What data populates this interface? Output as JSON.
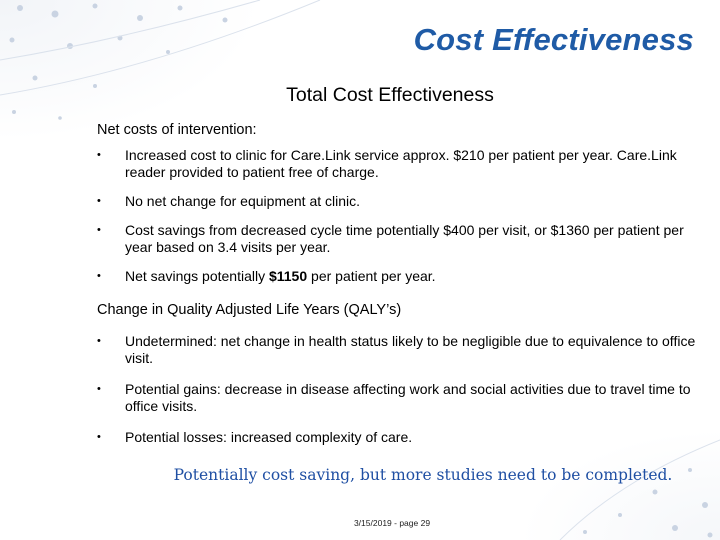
{
  "slide": {
    "title": "Cost Effectiveness",
    "subtitle": "Total Cost Effectiveness",
    "sections": [
      {
        "heading": "Net costs of intervention:",
        "bullets": [
          {
            "text": "Increased cost to clinic for Care.Link service approx. $210 per patient per year. Care.Link reader provided to patient free of charge."
          },
          {
            "text": "No net change for equipment at clinic."
          },
          {
            "text": "Cost savings from decreased cycle time potentially $400 per visit, or $1360 per patient per year based on 3.4 visits per year."
          },
          {
            "pre": "Net savings potentially ",
            "bold": "$1150",
            "post": " per patient per year."
          }
        ]
      },
      {
        "heading": "Change in Quality Adjusted Life Years (QALY’s)",
        "bullets": [
          {
            "text": "Undetermined: net change in health status likely to be negligible due to equivalence to office visit."
          },
          {
            "text": "Potential gains: decrease in disease affecting work and social activities due to travel time to office visits."
          },
          {
            "text": "Potential losses: increased complexity of care."
          }
        ]
      }
    ],
    "bullet_symbol": "•",
    "conclusion": "Potentially cost saving, but more studies need to be completed.",
    "footer": "3/15/2019 - page 29"
  },
  "colors": {
    "title": "#1f5ba6",
    "conclusion": "#1f4fa3",
    "decoration": "#c9d3e2"
  }
}
